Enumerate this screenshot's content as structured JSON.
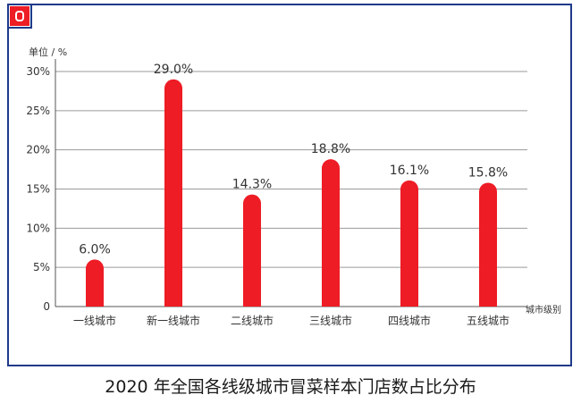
{
  "caption": "2020 年全国各线级城市冒菜样本门店数占比分布",
  "colors": {
    "bar": "#ee1c25",
    "frame": "#1f3a8a",
    "grid": "#9a9a9a",
    "text": "#333333"
  },
  "logo_icon": "red-square-bracket-logo",
  "chart_data": {
    "type": "bar",
    "categories": [
      "一线城市",
      "新一线城市",
      "二线城市",
      "三线城市",
      "四线城市",
      "五线城市"
    ],
    "values": [
      6.0,
      29.0,
      14.3,
      18.8,
      16.1,
      15.8
    ],
    "data_labels": [
      "6.0%",
      "29.0%",
      "14.3%",
      "18.8%",
      "16.1%",
      "15.8%"
    ],
    "title": "",
    "xlabel": "城市级别",
    "ylabel": "单位 / %",
    "ylim": [
      0,
      30
    ],
    "yticks": [
      0,
      5,
      10,
      15,
      20,
      25,
      30
    ],
    "ytick_labels": [
      "0",
      "5%",
      "10%",
      "15%",
      "20%",
      "25%",
      "30%"
    ],
    "grid": true,
    "legend": "none"
  }
}
